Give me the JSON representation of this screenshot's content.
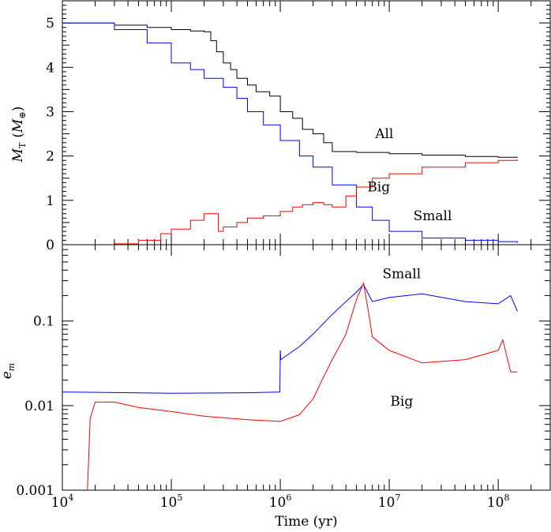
{
  "chart_data": [
    {
      "type": "line",
      "panel": "top",
      "ylabel_main": "M",
      "ylabel_sub": "T",
      "ylabel_unit_open": "(",
      "ylabel_unit_main": "M",
      "ylabel_unit_sub": "⊕",
      "ylabel_unit_close": ")",
      "xscale": "log",
      "xlim": [
        10000,
        300000000
      ],
      "ylim": [
        0,
        5.5
      ],
      "yticks": [
        "0",
        "1",
        "2",
        "3",
        "4",
        "5"
      ],
      "series": [
        {
          "name": "All",
          "color": "#000000",
          "x": [
            10000,
            17000,
            30000,
            60000,
            100000,
            150000,
            200000,
            230000,
            260000,
            300000,
            350000,
            400000,
            500000,
            600000,
            800000,
            1000000,
            1300000,
            1600000,
            2000000,
            2500000,
            3000000,
            5000000,
            10000000,
            20000000,
            50000000,
            100000000,
            150000000
          ],
          "values": [
            5.0,
            5.0,
            4.95,
            4.9,
            4.85,
            4.82,
            4.8,
            4.6,
            4.35,
            4.1,
            3.95,
            3.75,
            3.6,
            3.45,
            3.35,
            3.0,
            2.85,
            2.6,
            2.5,
            2.3,
            2.1,
            2.08,
            2.05,
            2.02,
            1.99,
            1.97,
            1.96
          ]
        },
        {
          "name": "Small",
          "color": "#0000ff",
          "x": [
            10000,
            17000,
            30000,
            60000,
            100000,
            150000,
            200000,
            300000,
            400000,
            500000,
            700000,
            1000000,
            1500000,
            2000000,
            3000000,
            5000000,
            7000000,
            10000000,
            20000000,
            50000000,
            100000000,
            150000000
          ],
          "values": [
            5.0,
            5.0,
            4.85,
            4.55,
            4.1,
            3.95,
            3.75,
            3.55,
            3.3,
            3.0,
            2.7,
            2.35,
            2.0,
            1.75,
            1.35,
            0.85,
            0.55,
            0.3,
            0.15,
            0.1,
            0.07,
            0.04
          ]
        },
        {
          "name": "Big",
          "color": "#ff0000",
          "x": [
            17000,
            30000,
            50000,
            80000,
            100000,
            150000,
            200000,
            270000,
            300000,
            400000,
            500000,
            700000,
            1000000,
            1300000,
            1600000,
            2000000,
            2500000,
            3000000,
            4000000,
            5000000,
            7000000,
            10000000,
            20000000,
            50000000,
            100000000,
            150000000
          ],
          "values": [
            0.0,
            0.02,
            0.1,
            0.25,
            0.35,
            0.55,
            0.7,
            0.3,
            0.4,
            0.5,
            0.6,
            0.65,
            0.75,
            0.85,
            0.9,
            0.95,
            0.9,
            0.85,
            1.1,
            1.3,
            1.5,
            1.6,
            1.75,
            1.85,
            1.9,
            1.92
          ]
        }
      ],
      "annotations": [
        {
          "text": "All",
          "x": 9000000,
          "y": 2.4
        },
        {
          "text": "Big",
          "x": 8000000,
          "y": 1.2
        },
        {
          "text": "Small",
          "x": 25000000,
          "y": 0.55
        }
      ]
    },
    {
      "type": "line",
      "panel": "bottom",
      "xlabel": "Time (yr)",
      "ylabel": "e",
      "ylabel_sub": "m",
      "xscale": "log",
      "yscale": "log",
      "xlim": [
        10000,
        300000000
      ],
      "ylim": [
        0.001,
        0.8
      ],
      "xticks": [
        {
          "base": "10",
          "exp": "4",
          "value": 10000
        },
        {
          "base": "10",
          "exp": "5",
          "value": 100000
        },
        {
          "base": "10",
          "exp": "6",
          "value": 1000000
        },
        {
          "base": "10",
          "exp": "7",
          "value": 10000000
        },
        {
          "base": "10",
          "exp": "8",
          "value": 100000000
        }
      ],
      "yticks": [
        {
          "label": "0.001",
          "value": 0.001
        },
        {
          "label": "0.01",
          "value": 0.01
        },
        {
          "label": "0.1",
          "value": 0.1
        }
      ],
      "series": [
        {
          "name": "Small",
          "color": "#0000ff",
          "x": [
            10000,
            100000,
            500000,
            990000,
            1000000,
            1010000,
            1500000,
            2000000,
            3000000,
            4000000,
            5000000,
            5800000,
            7000000,
            10000000,
            20000000,
            50000000,
            100000000,
            130000000,
            150000000
          ],
          "values": [
            0.0145,
            0.014,
            0.0142,
            0.0145,
            0.045,
            0.035,
            0.05,
            0.07,
            0.12,
            0.17,
            0.22,
            0.27,
            0.17,
            0.19,
            0.21,
            0.17,
            0.16,
            0.2,
            0.13
          ]
        },
        {
          "name": "Big",
          "color": "#ff0000",
          "x": [
            17000,
            18000,
            20000,
            30000,
            50000,
            100000,
            200000,
            500000,
            1000000,
            1500000,
            2000000,
            2500000,
            3000000,
            4000000,
            5000000,
            5800000,
            6500000,
            7000000,
            10000000,
            20000000,
            50000000,
            100000000,
            110000000,
            130000000,
            150000000
          ],
          "values": [
            0.001,
            0.007,
            0.011,
            0.011,
            0.0095,
            0.0085,
            0.0075,
            0.0068,
            0.0065,
            0.0078,
            0.012,
            0.022,
            0.035,
            0.07,
            0.18,
            0.28,
            0.12,
            0.065,
            0.045,
            0.032,
            0.035,
            0.045,
            0.06,
            0.025,
            0.025
          ]
        }
      ],
      "annotations": [
        {
          "text": "Small",
          "x": 13000000,
          "y": 0.32
        },
        {
          "text": "Big",
          "x": 13000000,
          "y": 0.01
        }
      ]
    }
  ]
}
